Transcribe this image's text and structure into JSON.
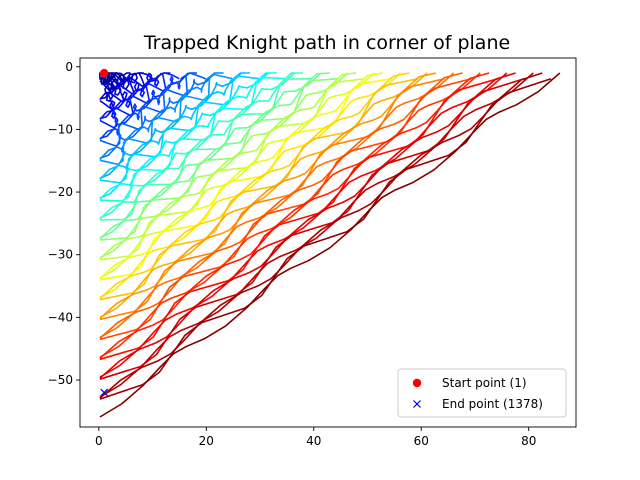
{
  "chart_data": {
    "type": "line",
    "title": "Trapped Knight path in corner of plane",
    "xlabel": "",
    "ylabel": "",
    "xlim": [
      -3.5,
      88.8
    ],
    "ylim": [
      -57.5,
      1.4
    ],
    "x_ticks": [
      0,
      20,
      40,
      60,
      80
    ],
    "x_tick_labels": [
      "0",
      "20",
      "40",
      "60",
      "80"
    ],
    "y_ticks": [
      0,
      -10,
      -20,
      -30,
      -40,
      -50
    ],
    "y_tick_labels": [
      "0",
      "−10",
      "−20",
      "−30",
      "−40",
      "−50"
    ],
    "grid": false,
    "colormap": "jet",
    "total_steps": 1378,
    "path_region": {
      "corner": [
        1,
        -1
      ],
      "x_extent": [
        1,
        85
      ],
      "y_extent": [
        -55,
        -1
      ]
    },
    "series": [
      {
        "name": "Start point (1)",
        "x": [
          1
        ],
        "y": [
          -1
        ],
        "marker": "circle",
        "color": "#ff0000"
      },
      {
        "name": "End point (1378)",
        "x": [
          1
        ],
        "y": [
          -52
        ],
        "marker": "x",
        "color": "#0000ff"
      }
    ],
    "legend": {
      "position": "lower-right",
      "entries": [
        "Start point (1)",
        "End point (1378)"
      ]
    }
  }
}
